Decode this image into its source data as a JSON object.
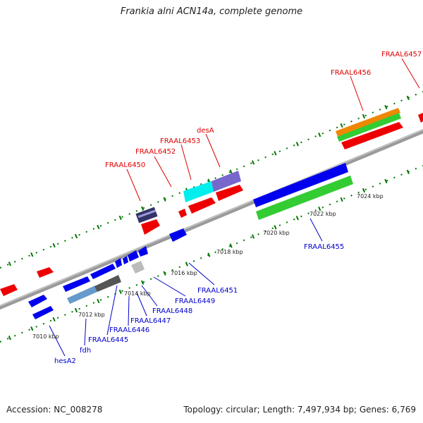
{
  "title": "Frankia alni ACN14a, complete genome",
  "footer": {
    "accession": "Accession: NC_008278",
    "stats": "Topology: circular; Length: 7,497,934 bp; Genes: 6,769"
  },
  "colors": {
    "top_label": "#dd0000",
    "bottom_label": "#0000cc",
    "backbone": "#808080",
    "ticks": "#007700"
  },
  "genes": [
    {
      "name": "FRAAL6450",
      "strand": "top",
      "color": "#dd0000"
    },
    {
      "name": "FRAAL6452",
      "strand": "top",
      "color": "#dd0000"
    },
    {
      "name": "FRAAL6453",
      "strand": "top",
      "color": "#dd0000"
    },
    {
      "name": "desA",
      "strand": "top",
      "color": "#dd0000"
    },
    {
      "name": "FRAAL6456",
      "strand": "top",
      "color": "#dd0000"
    },
    {
      "name": "FRAAL6457",
      "strand": "top",
      "color": "#dd0000"
    },
    {
      "name": "hesA2",
      "strand": "bottom",
      "color": "#0000cc"
    },
    {
      "name": "fdh",
      "strand": "bottom",
      "color": "#0000cc"
    },
    {
      "name": "FRAAL6445",
      "strand": "bottom",
      "color": "#0000cc"
    },
    {
      "name": "FRAAL6446",
      "strand": "bottom",
      "color": "#0000cc"
    },
    {
      "name": "FRAAL6447",
      "strand": "bottom",
      "color": "#0000cc"
    },
    {
      "name": "FRAAL6448",
      "strand": "bottom",
      "color": "#0000cc"
    },
    {
      "name": "FRAAL6449",
      "strand": "bottom",
      "color": "#0000cc"
    },
    {
      "name": "FRAAL6451",
      "strand": "bottom",
      "color": "#0000cc"
    },
    {
      "name": "FRAAL6455",
      "strand": "bottom",
      "color": "#0000cc"
    }
  ],
  "ticks": [
    "7010 kbp",
    "7012 kbp",
    "7014 kbp",
    "7016 kbp",
    "7018 kbp",
    "7020 kbp",
    "7022 kbp",
    "7024 kbp"
  ]
}
